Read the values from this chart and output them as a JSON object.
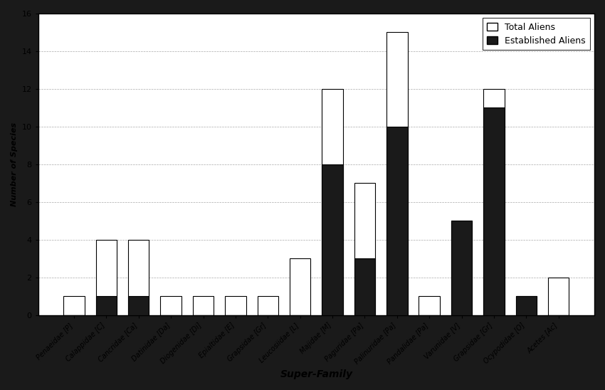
{
  "categories": [
    "Penaeidae [P]",
    "Calappidae [C]",
    "Cancridae [Ca]",
    "Datinidae [Da]",
    "Diogenidae [Di]",
    "Epialtidae [E]",
    "Grapsidae [Gr]",
    "Leucosiidae [L]",
    "Majidae [M]",
    "Paguridae [Pa]",
    "Palinuridae [Pa]",
    "Pandalidae [Pa]",
    "Varunidae [V]",
    "Grapsidae [Gr]",
    "Ocypodidae [O]",
    "Acetes [Ac]"
  ],
  "total_aliens": [
    1,
    4,
    4,
    1,
    1,
    1,
    1,
    3,
    12,
    7,
    15,
    1,
    5,
    12,
    1,
    2
  ],
  "established_aliens": [
    0,
    1,
    1,
    0,
    0,
    0,
    0,
    0,
    8,
    3,
    10,
    0,
    5,
    11,
    1,
    0
  ],
  "ylabel": "Number of Species",
  "xlabel": "Super-Family",
  "ylim": [
    0,
    16
  ],
  "yticks": [
    0,
    2,
    4,
    6,
    8,
    10,
    12,
    14,
    16
  ],
  "legend_labels": [
    "Total Aliens",
    "Established Aliens"
  ],
  "bar_width": 0.65,
  "total_color": "#ffffff",
  "established_color": "#1a1a1a",
  "total_edge": "#000000",
  "established_edge": "#000000",
  "plot_bg": "#ffffff",
  "fig_bg": "#1a1a1a",
  "text_color": "#000000",
  "grid_color": "#aaaaaa",
  "tick_label_fontsize": 7,
  "ylabel_fontsize": 8,
  "xlabel_fontsize": 10,
  "legend_fontsize": 9
}
